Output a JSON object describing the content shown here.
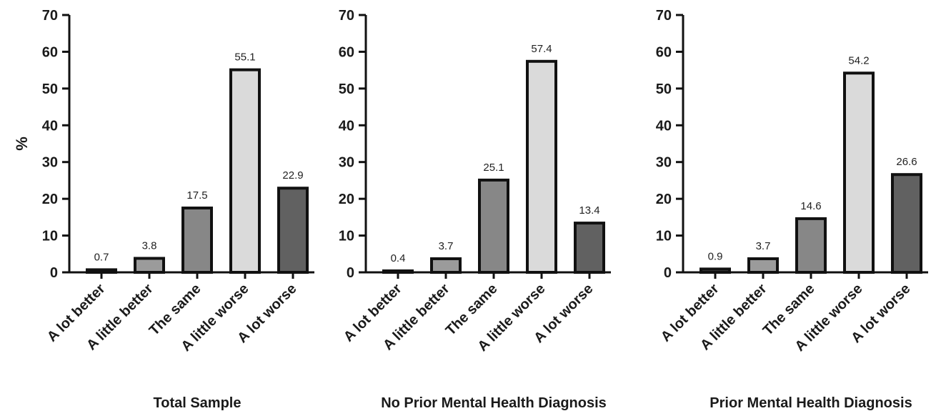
{
  "chart_data": [
    {
      "type": "bar",
      "title": "Total Sample",
      "ylabel": "%",
      "ylim": [
        0,
        70
      ],
      "yticks": [
        0,
        10,
        20,
        30,
        40,
        50,
        60,
        70
      ],
      "categories": [
        "A lot better",
        "A little better",
        "The same",
        "A little worse",
        "A lot worse"
      ],
      "values": [
        0.7,
        3.8,
        17.5,
        55.1,
        22.9
      ],
      "value_labels": [
        "0.7",
        "3.8",
        "17.5",
        "55.1",
        "22.9"
      ]
    },
    {
      "type": "bar",
      "title": "No Prior Mental Health Diagnosis",
      "ylim": [
        0,
        70
      ],
      "yticks": [
        0,
        10,
        20,
        30,
        40,
        50,
        60,
        70
      ],
      "categories": [
        "A lot better",
        "A little better",
        "The same",
        "A little worse",
        "A lot worse"
      ],
      "values": [
        0.4,
        3.7,
        25.1,
        57.4,
        13.4
      ],
      "value_labels": [
        "0.4",
        "3.7",
        "25.1",
        "57.4",
        "13.4"
      ]
    },
    {
      "type": "bar",
      "title": "Prior Mental Health Diagnosis",
      "ylim": [
        0,
        70
      ],
      "yticks": [
        0,
        10,
        20,
        30,
        40,
        50,
        60,
        70
      ],
      "categories": [
        "A lot better",
        "A little better",
        "The same",
        "A little worse",
        "A lot worse"
      ],
      "values": [
        0.9,
        3.7,
        14.6,
        54.2,
        26.6
      ],
      "value_labels": [
        "0.9",
        "3.7",
        "14.6",
        "54.2",
        "26.6"
      ]
    }
  ],
  "colors": {
    "bar_fills": [
      "#4a4a4a",
      "#9b9b9b",
      "#878787",
      "#dadada",
      "#616161"
    ],
    "bar_outline": "#111111",
    "axis": "#111111"
  }
}
